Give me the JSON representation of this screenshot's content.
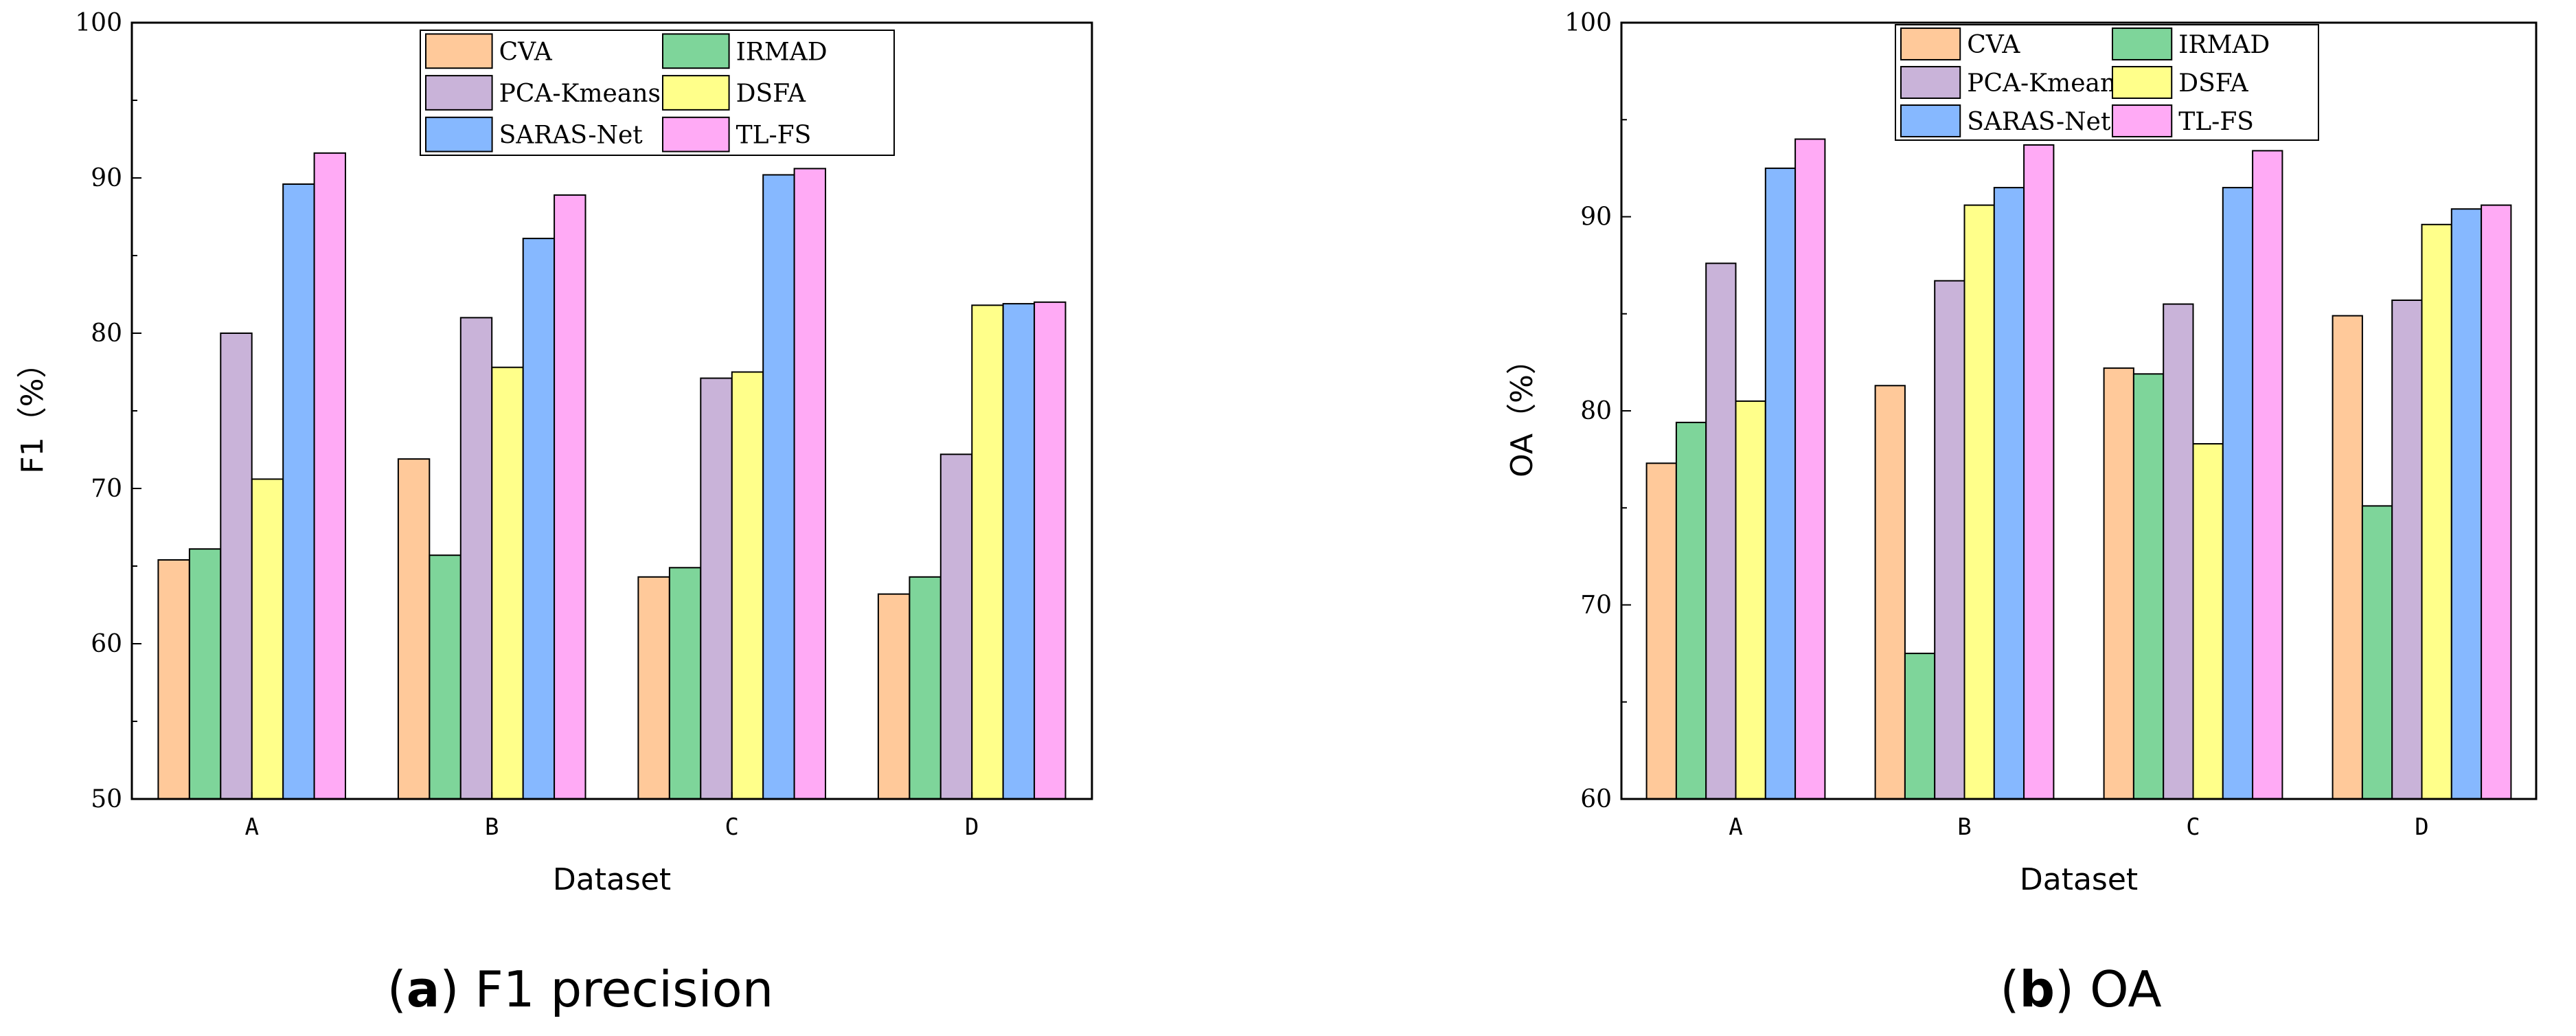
{
  "chart_data": [
    {
      "type": "bar",
      "title": "",
      "caption_letter": "a",
      "caption_rest": " F1 precision",
      "xlabel": "Dataset",
      "ylabel": "F1（%）",
      "ylim": [
        50,
        100
      ],
      "yticks": [
        50,
        60,
        70,
        80,
        90,
        100
      ],
      "categories": [
        "A",
        "B",
        "C",
        "D"
      ],
      "series": [
        {
          "name": "CVA",
          "color": "#FFC99A",
          "values": [
            65.4,
            71.9,
            64.3,
            63.2
          ]
        },
        {
          "name": "IRMAD",
          "color": "#7ED59A",
          "values": [
            66.1,
            65.7,
            64.9,
            64.3
          ]
        },
        {
          "name": "PCA-Kmeans",
          "color": "#C9B3D9",
          "values": [
            80.0,
            81.0,
            77.1,
            72.2
          ]
        },
        {
          "name": "DSFA",
          "color": "#FFFF8A",
          "values": [
            70.6,
            77.8,
            77.5,
            81.8
          ]
        },
        {
          "name": "SARAS-Net",
          "color": "#86B8FF",
          "values": [
            89.6,
            86.1,
            90.2,
            81.9
          ]
        },
        {
          "name": "TL-FS",
          "color": "#FFAAF5",
          "values": [
            91.6,
            88.9,
            90.6,
            82.0
          ]
        }
      ],
      "legend": {
        "position": "top-center",
        "columns": 2
      }
    },
    {
      "type": "bar",
      "title": "",
      "caption_letter": "b",
      "caption_rest": " OA",
      "xlabel": "Dataset",
      "ylabel": "OA（%）",
      "ylim": [
        60,
        100
      ],
      "yticks": [
        60,
        70,
        80,
        90,
        100
      ],
      "categories": [
        "A",
        "B",
        "C",
        "D"
      ],
      "series": [
        {
          "name": "CVA",
          "color": "#FFC99A",
          "values": [
            77.3,
            81.3,
            82.2,
            84.9
          ]
        },
        {
          "name": "IRMAD",
          "color": "#7ED59A",
          "values": [
            79.4,
            67.5,
            81.9,
            75.1
          ]
        },
        {
          "name": "PCA-Kmeans",
          "color": "#C9B3D9",
          "values": [
            87.6,
            86.7,
            85.5,
            85.7
          ]
        },
        {
          "name": "DSFA",
          "color": "#FFFF8A",
          "values": [
            80.5,
            90.6,
            78.3,
            89.6
          ]
        },
        {
          "name": "SARAS-Net",
          "color": "#86B8FF",
          "values": [
            92.5,
            91.5,
            91.5,
            90.4
          ]
        },
        {
          "name": "TL-FS",
          "color": "#FFAAF5",
          "values": [
            94.0,
            93.7,
            93.4,
            90.6
          ]
        }
      ],
      "legend": {
        "position": "top-center",
        "columns": 2
      }
    }
  ]
}
